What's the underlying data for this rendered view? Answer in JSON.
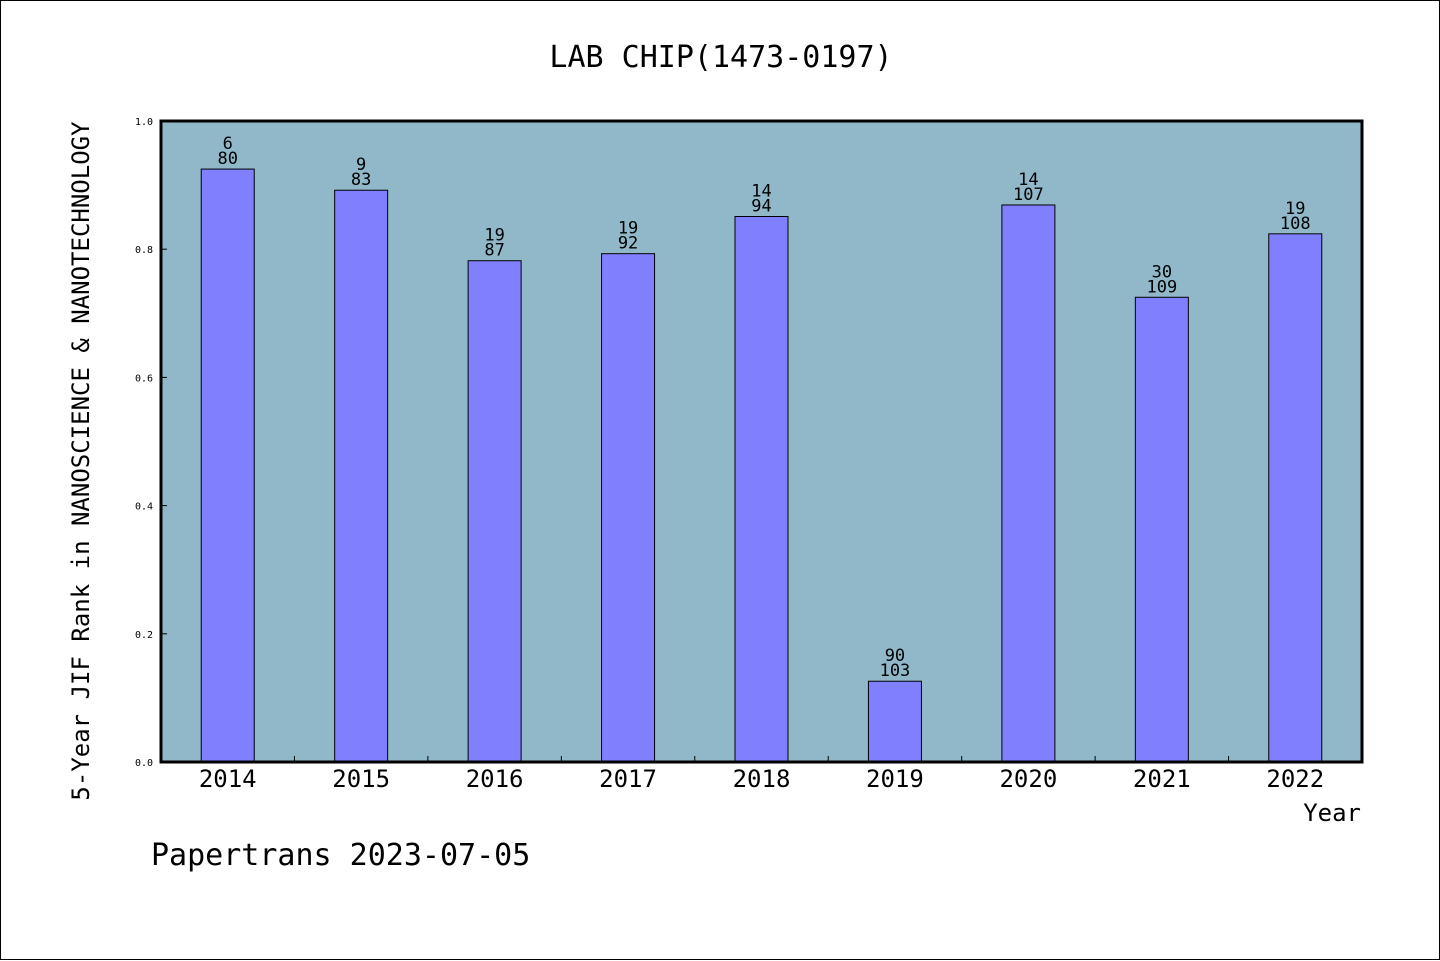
{
  "chart_data": {
    "type": "bar",
    "title": "LAB CHIP(1473-0197)",
    "xlabel": "Year",
    "ylabel": "5-Year JIF Rank in NANOSCIENCE & NANOTECHNOLOGY",
    "categories": [
      "2014",
      "2015",
      "2016",
      "2017",
      "2018",
      "2019",
      "2020",
      "2021",
      "2022"
    ],
    "ranks": [
      6,
      9,
      19,
      19,
      14,
      90,
      14,
      30,
      19
    ],
    "totals": [
      80,
      83,
      87,
      92,
      94,
      103,
      107,
      109,
      108
    ],
    "values": [
      0.925,
      0.892,
      0.782,
      0.793,
      0.851,
      0.126,
      0.869,
      0.725,
      0.824
    ],
    "ylim": [
      0,
      1.0
    ],
    "yticks": [
      "0.0",
      "0.2",
      "0.4",
      "0.6",
      "0.8",
      "1.0"
    ],
    "grid": false,
    "colors": {
      "bar": "#8080ff",
      "plot_bg": "#90b8c8",
      "axis": "#000000"
    }
  },
  "footer": {
    "text": "Papertrans 2023-07-05"
  }
}
